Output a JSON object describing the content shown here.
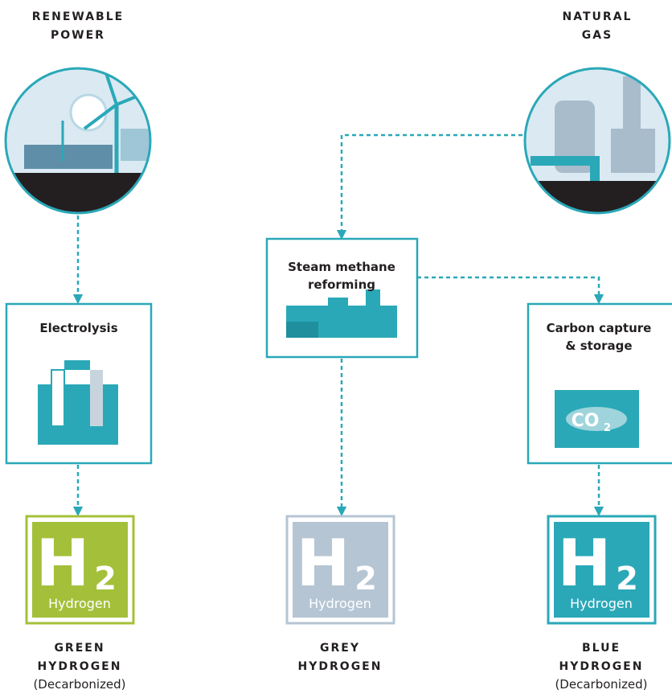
{
  "sources": [
    {
      "lines": [
        "RENEWABLE",
        "POWER"
      ]
    },
    {
      "lines": [
        "NATURAL",
        "GAS"
      ]
    }
  ],
  "processes": [
    {
      "lines": [
        "Electrolysis"
      ]
    },
    {
      "lines": [
        "Steam methane",
        "reforming"
      ]
    },
    {
      "lines": [
        "Carbon capture",
        "& storage"
      ],
      "icon_text": [
        "CO",
        "2"
      ]
    }
  ],
  "products": [
    {
      "symbol": "H",
      "subscript": "2",
      "name": "Hydrogen",
      "lines": [
        "GREEN",
        "HYDROGEN"
      ],
      "note": "(Decarbonized)"
    },
    {
      "symbol": "H",
      "subscript": "2",
      "name": "Hydrogen",
      "lines": [
        "GREY",
        "HYDROGEN"
      ]
    },
    {
      "symbol": "H",
      "subscript": "2",
      "name": "Hydrogen",
      "lines": [
        "BLUE",
        "HYDROGEN"
      ],
      "note": "(Decarbonized)"
    }
  ]
}
